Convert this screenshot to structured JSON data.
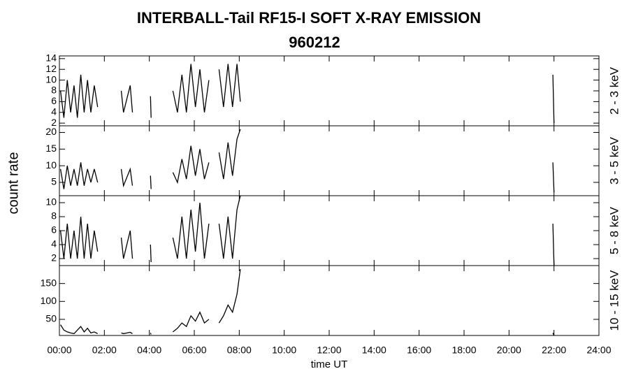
{
  "header": {
    "title": "INTERBALL-Tail RF15-I SOFT X-RAY EMISSION",
    "subtitle": "960212",
    "ylabel": "count rate",
    "xlabel": "time UT"
  },
  "chart_data": [
    {
      "type": "line",
      "label": "2 - 3 keV",
      "color": "#000000",
      "x": [
        0.05,
        0.2,
        0.35,
        0.5,
        0.65,
        0.8,
        0.95,
        1.1,
        1.25,
        1.4,
        1.55,
        1.7,
        2.2,
        2.75,
        2.85,
        3.15,
        3.25,
        3.6,
        4.05,
        4.08,
        4.5,
        5.05,
        5.25,
        5.45,
        5.65,
        5.85,
        6.05,
        6.25,
        6.45,
        6.65,
        6.9,
        7.1,
        7.3,
        7.5,
        7.7,
        7.9,
        8.05,
        15,
        21.95,
        22.0
      ],
      "values": [
        8,
        3,
        10,
        4,
        9,
        3,
        11,
        4,
        10,
        4,
        9,
        5,
        null,
        8,
        4,
        9,
        4,
        null,
        7,
        3,
        null,
        8,
        4,
        11,
        4,
        13,
        5,
        12,
        4,
        10,
        null,
        12,
        5,
        13,
        5,
        13,
        6,
        null,
        11,
        2
      ],
      "xlim": [
        0,
        24
      ],
      "xticks": [
        0,
        2,
        4,
        6,
        8,
        10,
        12,
        14,
        16,
        18,
        20,
        22,
        24
      ],
      "ylim": [
        1.5,
        14.5
      ],
      "yticks": [
        2,
        4,
        6,
        8,
        10,
        12,
        14
      ]
    },
    {
      "type": "line",
      "label": "3 - 5 keV",
      "color": "#000000",
      "x": [
        0.05,
        0.2,
        0.35,
        0.5,
        0.65,
        0.8,
        0.95,
        1.1,
        1.25,
        1.4,
        1.55,
        1.7,
        2.2,
        2.75,
        2.85,
        3.15,
        3.25,
        3.6,
        4.05,
        4.08,
        4.5,
        5.05,
        5.25,
        5.45,
        5.65,
        5.85,
        6.05,
        6.25,
        6.45,
        6.65,
        6.9,
        7.1,
        7.3,
        7.5,
        7.7,
        7.9,
        8.05,
        15,
        21.95,
        22.0
      ],
      "values": [
        9,
        3,
        10,
        4,
        9,
        4,
        11,
        4,
        9,
        5,
        9,
        5,
        null,
        9,
        4,
        9,
        4,
        null,
        7,
        3,
        null,
        8,
        5,
        12,
        6,
        16,
        7,
        15,
        6,
        11,
        null,
        14,
        6,
        17,
        7,
        18,
        21,
        null,
        11,
        2
      ],
      "xlim": [
        0,
        24
      ],
      "xticks": [
        0,
        2,
        4,
        6,
        8,
        10,
        12,
        14,
        16,
        18,
        20,
        22,
        24
      ],
      "ylim": [
        1,
        22
      ],
      "yticks": [
        5,
        10,
        15,
        20
      ]
    },
    {
      "type": "line",
      "label": "5 - 8 keV",
      "color": "#000000",
      "x": [
        0.05,
        0.2,
        0.35,
        0.5,
        0.65,
        0.8,
        0.95,
        1.1,
        1.25,
        1.4,
        1.55,
        1.7,
        2.2,
        2.75,
        2.85,
        3.15,
        3.25,
        3.6,
        4.05,
        4.08,
        4.5,
        5.05,
        5.25,
        5.45,
        5.65,
        5.85,
        6.05,
        6.25,
        6.45,
        6.65,
        6.9,
        7.1,
        7.3,
        7.5,
        7.7,
        7.9,
        8.05,
        15,
        21.95,
        22.0
      ],
      "values": [
        6,
        2,
        7,
        2,
        6,
        2,
        8,
        2,
        7,
        2,
        6,
        3,
        null,
        5,
        2,
        6,
        2,
        null,
        4,
        1.5,
        null,
        5,
        2,
        8,
        2,
        9,
        3,
        10,
        2,
        7,
        null,
        7,
        2,
        8,
        2,
        9,
        11,
        null,
        7,
        1
      ],
      "xlim": [
        0,
        24
      ],
      "xticks": [
        0,
        2,
        4,
        6,
        8,
        10,
        12,
        14,
        16,
        18,
        20,
        22,
        24
      ],
      "ylim": [
        1,
        11
      ],
      "yticks": [
        2,
        4,
        6,
        8,
        10
      ]
    },
    {
      "type": "line",
      "label": "10 - 15 keV",
      "color": "#000000",
      "x": [
        0.05,
        0.2,
        0.35,
        0.5,
        0.65,
        0.8,
        0.95,
        1.1,
        1.25,
        1.4,
        1.55,
        1.7,
        2.2,
        2.75,
        2.85,
        3.15,
        3.25,
        3.6,
        4.05,
        4.08,
        4.5,
        5.05,
        5.25,
        5.45,
        5.65,
        5.85,
        6.05,
        6.25,
        6.45,
        6.65,
        6.9,
        7.1,
        7.3,
        7.5,
        7.7,
        7.9,
        8.05,
        15,
        21.95,
        22.0
      ],
      "values": [
        35,
        20,
        15,
        12,
        10,
        20,
        30,
        15,
        25,
        12,
        15,
        10,
        null,
        12,
        10,
        14,
        10,
        null,
        12,
        8,
        null,
        15,
        25,
        40,
        30,
        60,
        45,
        70,
        40,
        50,
        null,
        40,
        60,
        90,
        70,
        120,
        190,
        null,
        12,
        5
      ],
      "xlim": [
        0,
        24
      ],
      "xticks": [
        {
          "value": 0,
          "label": "00:00"
        },
        {
          "value": 2,
          "label": "02:00"
        },
        {
          "value": 4,
          "label": "04:00"
        },
        {
          "value": 6,
          "label": "06:00"
        },
        {
          "value": 8,
          "label": "08:00"
        },
        {
          "value": 10,
          "label": "10:00"
        },
        {
          "value": 12,
          "label": "12:00"
        },
        {
          "value": 14,
          "label": "14:00"
        },
        {
          "value": 16,
          "label": "16:00"
        },
        {
          "value": 18,
          "label": "18:00"
        },
        {
          "value": 20,
          "label": "20:00"
        },
        {
          "value": 22,
          "label": "22:00"
        },
        {
          "value": 24,
          "label": "24:00"
        }
      ],
      "ylim": [
        5,
        200
      ],
      "yticks": [
        50,
        100,
        150
      ]
    }
  ]
}
